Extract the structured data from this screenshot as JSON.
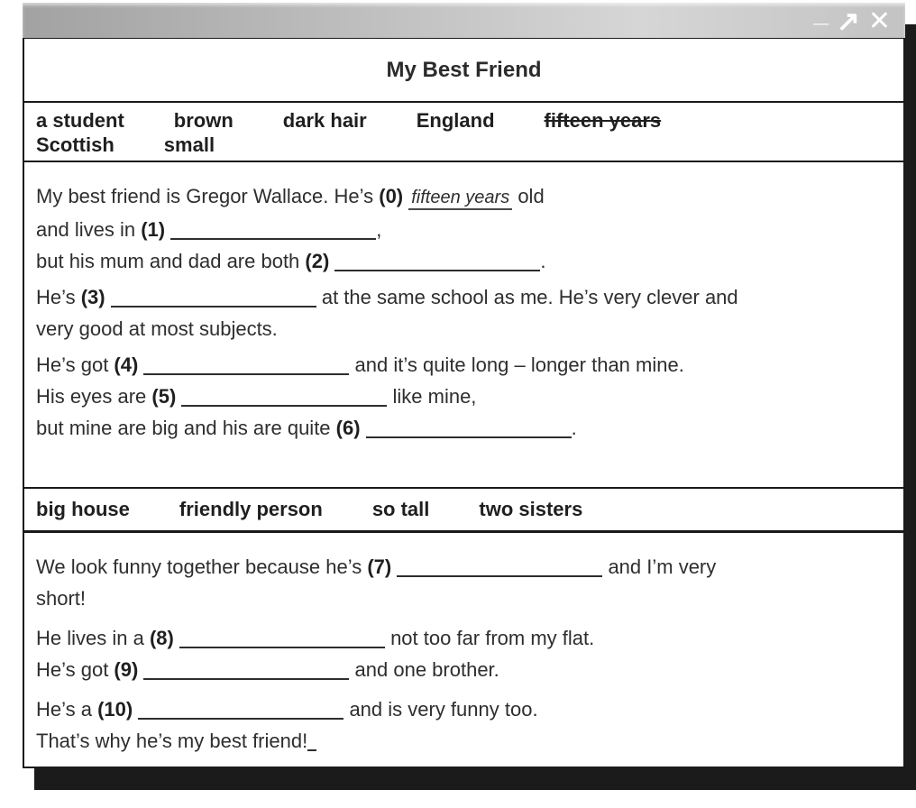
{
  "window": {
    "titlebar": {
      "minimize_label": "_",
      "maximize_icon": "↗",
      "close_icon": "✕"
    }
  },
  "doc": {
    "title": "My Best Friend",
    "word_bank_1": {
      "rows": [
        [
          {
            "text": "a student"
          },
          {
            "text": "brown"
          },
          {
            "text": "dark hair"
          },
          {
            "text": "England"
          },
          {
            "text": "fifteen years",
            "struck": true
          }
        ],
        [
          {
            "text": "Scottish"
          },
          {
            "text": "small"
          }
        ]
      ]
    },
    "word_bank_2": {
      "rows": [
        [
          {
            "text": "big house"
          },
          {
            "text": "friendly person"
          },
          {
            "text": "so tall"
          },
          {
            "text": "two sisters"
          }
        ]
      ]
    },
    "section_1": {
      "paragraphs": [
        [
          [
            {
              "text": "My best friend is Gregor Wallace. He’s "
            },
            {
              "bold": "(0) "
            },
            {
              "answer": "fifteen years"
            },
            {
              "text": " old"
            }
          ],
          [
            {
              "text": "and lives in "
            },
            {
              "bold": "(1) "
            },
            {
              "blank": 228
            },
            {
              "text": ","
            }
          ],
          [
            {
              "text": "but his mum and dad are both "
            },
            {
              "bold": "(2) "
            },
            {
              "blank": 228
            },
            {
              "text": "."
            }
          ]
        ],
        [
          [
            {
              "text": "He’s "
            },
            {
              "bold": "(3) "
            },
            {
              "blank": 228
            },
            {
              "text": " at the same school as me. He’s very clever and"
            }
          ],
          [
            {
              "text": "very good at most subjects."
            }
          ]
        ],
        [
          [
            {
              "text": "He’s got "
            },
            {
              "bold": "(4) "
            },
            {
              "blank": 228
            },
            {
              "text": " and it’s quite long – longer than mine."
            }
          ],
          [
            {
              "text": "His eyes are "
            },
            {
              "bold": "(5) "
            },
            {
              "blank": 228
            },
            {
              "text": " like mine,"
            }
          ],
          [
            {
              "text": "but mine are big and his are quite "
            },
            {
              "bold": "(6) "
            },
            {
              "blank": 228
            },
            {
              "text": "."
            }
          ]
        ]
      ]
    },
    "section_2": {
      "paragraphs": [
        [
          [
            {
              "text": "We look funny together because he’s "
            },
            {
              "bold": "(7) "
            },
            {
              "blank": 228
            },
            {
              "text": " and I’m very"
            }
          ],
          [
            {
              "text": "short!"
            }
          ]
        ],
        [
          [
            {
              "text": "He lives in a "
            },
            {
              "bold": "(8) "
            },
            {
              "blank": 228
            },
            {
              "text": " not too far from my flat."
            }
          ],
          [
            {
              "text": "He’s got "
            },
            {
              "bold": "(9) "
            },
            {
              "blank": 228
            },
            {
              "text": " and one brother."
            }
          ]
        ],
        [
          [
            {
              "text": "He’s a "
            },
            {
              "bold": "(10) "
            },
            {
              "blank": 228
            },
            {
              "text": " and is very funny too."
            }
          ],
          [
            {
              "text": "That’s why he’s my best friend!"
            },
            {
              "blank": 10
            }
          ]
        ]
      ]
    }
  },
  "colors": {
    "shadow": "#1b1b1b",
    "titlebar_left": "#a2a2a2",
    "titlebar_right": "#c3c3c3",
    "border": "#1a1a1a",
    "text": "#2e2e2e",
    "control_glyphs": "#ffffff"
  }
}
